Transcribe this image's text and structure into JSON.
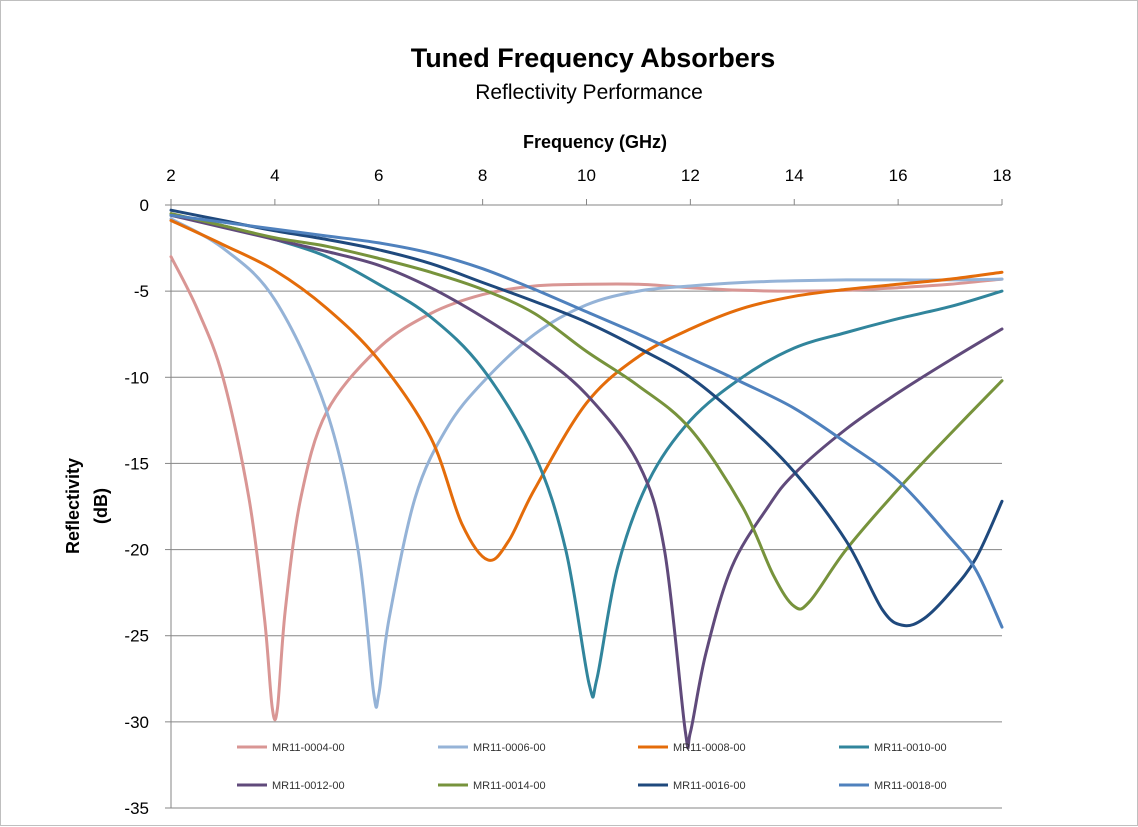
{
  "chart_data": {
    "type": "line",
    "title": "Tuned Frequency Absorbers",
    "subtitle": "Reflectivity Performance",
    "xlabel": "Frequency (GHz)",
    "ylabel_lines": [
      "Reflectivity",
      "(dB)"
    ],
    "xlim": [
      2,
      18
    ],
    "ylim": [
      -35,
      0
    ],
    "x_ticks": [
      "2",
      "4",
      "6",
      "8",
      "10",
      "12",
      "14",
      "16",
      "18"
    ],
    "y_ticks": [
      "0",
      "-5",
      "-10",
      "-15",
      "-20",
      "-25",
      "-30",
      "-35"
    ],
    "x_tick_values": [
      2,
      4,
      6,
      8,
      10,
      12,
      14,
      16,
      18
    ],
    "y_tick_values": [
      0,
      -5,
      -10,
      -15,
      -20,
      -25,
      -30,
      -35
    ],
    "x_axis_position": "top",
    "grid": "horizontal",
    "legend_position": "bottom",
    "series": [
      {
        "name": "MR11-0004-00",
        "color": "#d99694",
        "points": [
          [
            2,
            -3.0
          ],
          [
            2.5,
            -6
          ],
          [
            3,
            -10
          ],
          [
            3.5,
            -17
          ],
          [
            3.8,
            -24
          ],
          [
            3.95,
            -29.2
          ],
          [
            4.05,
            -29.2
          ],
          [
            4.2,
            -23.5
          ],
          [
            4.5,
            -17
          ],
          [
            5,
            -12
          ],
          [
            6,
            -8.3
          ],
          [
            7,
            -6.3
          ],
          [
            8,
            -5.2
          ],
          [
            9,
            -4.7
          ],
          [
            10,
            -4.6
          ],
          [
            11,
            -4.6
          ],
          [
            12,
            -4.8
          ],
          [
            13,
            -4.95
          ],
          [
            14,
            -5.0
          ],
          [
            15,
            -4.95
          ],
          [
            16,
            -4.8
          ],
          [
            17,
            -4.6
          ],
          [
            18,
            -4.3
          ]
        ]
      },
      {
        "name": "MR11-0006-00",
        "color": "#95b3d7",
        "points": [
          [
            2,
            -0.8
          ],
          [
            3,
            -2.5
          ],
          [
            4,
            -5.5
          ],
          [
            5,
            -12
          ],
          [
            5.6,
            -20
          ],
          [
            5.9,
            -28.3
          ],
          [
            6.0,
            -28.4
          ],
          [
            6.2,
            -24
          ],
          [
            6.7,
            -17
          ],
          [
            7.3,
            -13
          ],
          [
            8,
            -10.3
          ],
          [
            9,
            -7.5
          ],
          [
            10,
            -5.8
          ],
          [
            11,
            -5.0
          ],
          [
            12,
            -4.7
          ],
          [
            13,
            -4.5
          ],
          [
            14,
            -4.4
          ],
          [
            15,
            -4.35
          ],
          [
            16,
            -4.35
          ],
          [
            17,
            -4.35
          ],
          [
            18,
            -4.3
          ]
        ]
      },
      {
        "name": "MR11-0008-00",
        "color": "#e46c0a",
        "points": [
          [
            2,
            -0.9
          ],
          [
            3,
            -2.3
          ],
          [
            4,
            -3.8
          ],
          [
            5,
            -6
          ],
          [
            6,
            -9
          ],
          [
            7,
            -13.5
          ],
          [
            7.6,
            -18.5
          ],
          [
            8.1,
            -20.6
          ],
          [
            8.5,
            -19.5
          ],
          [
            9,
            -16.5
          ],
          [
            10,
            -11.5
          ],
          [
            11,
            -8.8
          ],
          [
            12,
            -7.2
          ],
          [
            13,
            -6.0
          ],
          [
            14,
            -5.3
          ],
          [
            15,
            -4.9
          ],
          [
            16,
            -4.6
          ],
          [
            17,
            -4.3
          ],
          [
            18,
            -3.9
          ]
        ]
      },
      {
        "name": "MR11-0010-00",
        "color": "#31859c",
        "points": [
          [
            2,
            -0.6
          ],
          [
            3,
            -1.2
          ],
          [
            4,
            -2.0
          ],
          [
            5,
            -3.0
          ],
          [
            6,
            -4.6
          ],
          [
            7,
            -6.5
          ],
          [
            8,
            -9.5
          ],
          [
            9,
            -14.5
          ],
          [
            9.6,
            -20
          ],
          [
            10.05,
            -27.8
          ],
          [
            10.2,
            -27.5
          ],
          [
            10.6,
            -21
          ],
          [
            11.2,
            -16
          ],
          [
            12,
            -12.5
          ],
          [
            13,
            -10
          ],
          [
            14,
            -8.3
          ],
          [
            15,
            -7.4
          ],
          [
            16,
            -6.6
          ],
          [
            17,
            -5.9
          ],
          [
            18,
            -5.0
          ]
        ]
      },
      {
        "name": "MR11-0012-00",
        "color": "#604a7b",
        "points": [
          [
            2,
            -0.6
          ],
          [
            3,
            -1.3
          ],
          [
            4,
            -2.0
          ],
          [
            5,
            -2.7
          ],
          [
            6,
            -3.5
          ],
          [
            7,
            -4.8
          ],
          [
            8,
            -6.5
          ],
          [
            9,
            -8.5
          ],
          [
            10,
            -11
          ],
          [
            11,
            -15
          ],
          [
            11.5,
            -20
          ],
          [
            11.9,
            -30.5
          ],
          [
            12.0,
            -30.6
          ],
          [
            12.3,
            -26
          ],
          [
            12.8,
            -21
          ],
          [
            13.5,
            -17.5
          ],
          [
            14,
            -15.6
          ],
          [
            15,
            -13
          ],
          [
            16,
            -10.9
          ],
          [
            17,
            -9.0
          ],
          [
            18,
            -7.2
          ]
        ]
      },
      {
        "name": "MR11-0014-00",
        "color": "#77933c",
        "points": [
          [
            2,
            -0.5
          ],
          [
            3,
            -1.2
          ],
          [
            4,
            -1.9
          ],
          [
            5,
            -2.4
          ],
          [
            6,
            -3.1
          ],
          [
            7,
            -3.9
          ],
          [
            8,
            -4.9
          ],
          [
            9,
            -6.3
          ],
          [
            10,
            -8.5
          ],
          [
            11,
            -10.5
          ],
          [
            12,
            -13
          ],
          [
            13,
            -17.5
          ],
          [
            13.6,
            -21.5
          ],
          [
            14,
            -23.3
          ],
          [
            14.3,
            -23.0
          ],
          [
            15,
            -20
          ],
          [
            16,
            -16.5
          ],
          [
            17,
            -13.3
          ],
          [
            18,
            -10.2
          ]
        ]
      },
      {
        "name": "MR11-0016-00",
        "color": "#1f497d",
        "points": [
          [
            2,
            -0.3
          ],
          [
            3,
            -0.9
          ],
          [
            4,
            -1.5
          ],
          [
            5,
            -2.0
          ],
          [
            6,
            -2.6
          ],
          [
            7,
            -3.4
          ],
          [
            8,
            -4.5
          ],
          [
            9,
            -5.6
          ],
          [
            10,
            -6.8
          ],
          [
            11,
            -8.3
          ],
          [
            12,
            -10
          ],
          [
            13,
            -12.5
          ],
          [
            14,
            -15.5
          ],
          [
            15,
            -19.5
          ],
          [
            15.7,
            -23.5
          ],
          [
            16.1,
            -24.4
          ],
          [
            16.5,
            -24
          ],
          [
            17,
            -22.5
          ],
          [
            17.5,
            -20.5
          ],
          [
            18,
            -17.2
          ]
        ]
      },
      {
        "name": "MR11-0018-00",
        "color": "#4f81bd",
        "points": [
          [
            2,
            -0.6
          ],
          [
            3,
            -1.0
          ],
          [
            4,
            -1.4
          ],
          [
            5,
            -1.8
          ],
          [
            6,
            -2.2
          ],
          [
            7,
            -2.8
          ],
          [
            8,
            -3.7
          ],
          [
            9,
            -4.9
          ],
          [
            10,
            -6.2
          ],
          [
            11,
            -7.5
          ],
          [
            12,
            -8.9
          ],
          [
            13,
            -10.3
          ],
          [
            14,
            -11.8
          ],
          [
            15,
            -13.8
          ],
          [
            16,
            -16
          ],
          [
            17,
            -19.3
          ],
          [
            17.5,
            -21.2
          ],
          [
            18,
            -24.5
          ]
        ]
      }
    ]
  }
}
